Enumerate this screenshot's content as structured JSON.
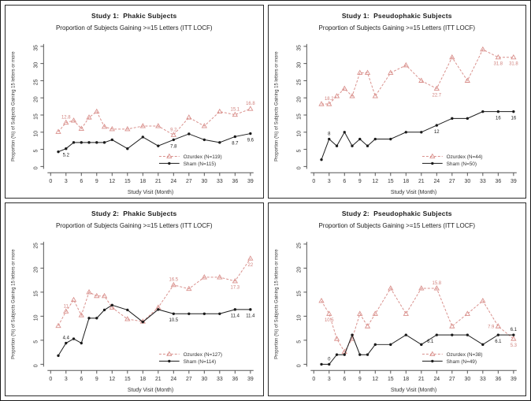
{
  "colors": {
    "ozurdex": "#d9908c",
    "ozurdex_label": "#d0807c",
    "sham": "#1a1a1a",
    "axis": "#555555",
    "tick_text": "#333333",
    "label_text": "#333333"
  },
  "chart_data": [
    {
      "type": "line",
      "title": "Study 1:  Phakic Subjects",
      "subtitle": "Proportion of Subjects Gaining >=15 Letters (ITT LOCF)",
      "xlabel": "Study Visit (Month)",
      "ylabel": "Proportion (%) of Subjects Gaining 15 letters or more",
      "xticks": [
        0,
        3,
        6,
        9,
        12,
        15,
        18,
        21,
        24,
        27,
        30,
        33,
        36,
        39
      ],
      "yticks": [
        0,
        5,
        10,
        15,
        20,
        25,
        30,
        35
      ],
      "ylim": [
        0,
        35
      ],
      "x": [
        1.5,
        3,
        4.5,
        6,
        7.5,
        9,
        10.5,
        12,
        15,
        18,
        21,
        24,
        27,
        30,
        33,
        36,
        39
      ],
      "legend_position": "bottom-right",
      "grid": false,
      "series": [
        {
          "name": "Ozurdex (N=119)",
          "color_key": "ozurdex",
          "marker": "open-triangle",
          "line_style": "dashed",
          "values": [
            10.1,
            12.8,
            13.4,
            11.0,
            14.3,
            16.0,
            11.6,
            10.9,
            10.9,
            11.8,
            11.8,
            9.2,
            14.3,
            11.8,
            16.0,
            15.1,
            16.8
          ],
          "point_labels": [
            {
              "month": 3,
              "text": "12.8",
              "pos": "above"
            },
            {
              "month": 24,
              "text": "9.2",
              "pos": "above"
            },
            {
              "month": 36,
              "text": "15.1",
              "pos": "above"
            },
            {
              "month": 39,
              "text": "16.8",
              "pos": "above"
            }
          ]
        },
        {
          "name": "Sham (N=115)",
          "color_key": "sham",
          "marker": "filled-dot",
          "line_style": "solid",
          "values": [
            4.3,
            5.2,
            7.0,
            7.0,
            7.0,
            7.0,
            7.0,
            7.8,
            5.2,
            8.6,
            6.0,
            7.8,
            9.5,
            7.8,
            7.0,
            8.7,
            9.6
          ],
          "point_labels": [
            {
              "month": 3,
              "text": "5.2",
              "pos": "below"
            },
            {
              "month": 24,
              "text": "7.8",
              "pos": "below"
            },
            {
              "month": 36,
              "text": "8.7",
              "pos": "below"
            },
            {
              "month": 39,
              "text": "9.6",
              "pos": "below"
            }
          ]
        }
      ]
    },
    {
      "type": "line",
      "title": "Study 1:  Pseudophakic Subjects",
      "subtitle": "Proportion of Subjects Gaining >=15 Letters (ITT LOCF)",
      "xlabel": "Study Visit (Month)",
      "ylabel": "Proportion (%) of Subjects Gaining 15 letters or more",
      "xticks": [
        0,
        3,
        6,
        9,
        12,
        15,
        18,
        21,
        24,
        27,
        30,
        33,
        36,
        39
      ],
      "yticks": [
        0,
        5,
        10,
        15,
        20,
        25,
        30,
        35
      ],
      "ylim": [
        0,
        35
      ],
      "x": [
        1.5,
        3,
        4.5,
        6,
        7.5,
        9,
        10.5,
        12,
        15,
        18,
        21,
        24,
        27,
        30,
        33,
        36,
        39
      ],
      "legend_position": "bottom-right",
      "grid": false,
      "series": [
        {
          "name": "Ozurdex (N=44)",
          "color_key": "ozurdex",
          "marker": "open-triangle",
          "line_style": "dashed",
          "values": [
            18.2,
            18.2,
            20.5,
            22.7,
            20.5,
            27.3,
            27.3,
            20.5,
            27.3,
            29.5,
            25.0,
            22.7,
            31.8,
            25.0,
            34.1,
            31.8,
            31.8
          ],
          "point_labels": [
            {
              "month": 3,
              "text": "18.2",
              "pos": "above"
            },
            {
              "month": 24,
              "text": "22.7",
              "pos": "below"
            },
            {
              "month": 36,
              "text": "31.8",
              "pos": "below"
            },
            {
              "month": 39,
              "text": "31.8",
              "pos": "below"
            }
          ]
        },
        {
          "name": "Sham (N=50)",
          "color_key": "sham",
          "marker": "filled-dot",
          "line_style": "solid",
          "values": [
            2,
            8,
            6,
            10,
            6,
            8,
            6,
            8,
            8,
            10,
            10,
            12,
            14,
            14,
            16,
            16,
            16
          ],
          "point_labels": [
            {
              "month": 3,
              "text": "8",
              "pos": "above"
            },
            {
              "month": 24,
              "text": "12",
              "pos": "below"
            },
            {
              "month": 36,
              "text": "16",
              "pos": "below"
            },
            {
              "month": 39,
              "text": "16",
              "pos": "below"
            }
          ]
        }
      ]
    },
    {
      "type": "line",
      "title": "Study 2:  Phakic Subjects",
      "subtitle": "Proportion of Subjects Gaining >=15 Letters (ITT LOCF)",
      "xlabel": "Study Visit (Month)",
      "ylabel": "Proportion (%) of Subjects Gaining 15 letters or more",
      "xticks": [
        0,
        3,
        6,
        9,
        12,
        15,
        18,
        21,
        24,
        27,
        30,
        33,
        36,
        39
      ],
      "yticks": [
        0,
        5,
        10,
        15,
        20,
        25
      ],
      "ylim": [
        0,
        25
      ],
      "x": [
        1.5,
        3,
        4.5,
        6,
        7.5,
        9,
        10.5,
        12,
        15,
        18,
        21,
        24,
        27,
        30,
        33,
        36,
        39
      ],
      "legend_position": "bottom-right",
      "grid": false,
      "series": [
        {
          "name": "Ozurdex (N=127)",
          "color_key": "ozurdex",
          "marker": "open-triangle",
          "line_style": "dashed",
          "values": [
            8.0,
            11.0,
            13.4,
            10.2,
            15.0,
            14.2,
            14.2,
            11.8,
            9.4,
            8.9,
            11.8,
            16.5,
            15.7,
            18.1,
            18.1,
            17.3,
            22.0
          ],
          "point_labels": [
            {
              "month": 3,
              "text": "11",
              "pos": "above"
            },
            {
              "month": 24,
              "text": "16.5",
              "pos": "above"
            },
            {
              "month": 36,
              "text": "17.3",
              "pos": "below"
            },
            {
              "month": 39,
              "text": "22",
              "pos": "below"
            }
          ]
        },
        {
          "name": "Sham (N=114)",
          "color_key": "sham",
          "marker": "filled-dot",
          "line_style": "solid",
          "values": [
            1.8,
            4.4,
            5.3,
            4.4,
            9.6,
            9.6,
            11.3,
            12.3,
            11.3,
            8.8,
            11.4,
            10.5,
            10.5,
            10.5,
            10.5,
            11.4,
            11.4
          ],
          "point_labels": [
            {
              "month": 3,
              "text": "4.4",
              "pos": "above"
            },
            {
              "month": 24,
              "text": "10.5",
              "pos": "below"
            },
            {
              "month": 36,
              "text": "11.4",
              "pos": "below"
            },
            {
              "month": 39,
              "text": "11.4",
              "pos": "below"
            }
          ]
        }
      ]
    },
    {
      "type": "line",
      "title": "Study 2:  Pseudophakic Subjects",
      "subtitle": "Proportion of Subjects Gaining >=15 Letters (ITT LOCF)",
      "xlabel": "Study Visit (Month)",
      "ylabel": "Proportion (%) of Subjects Gaining 15 letters or more",
      "xticks": [
        0,
        3,
        6,
        9,
        12,
        15,
        18,
        21,
        24,
        27,
        30,
        33,
        36,
        39
      ],
      "yticks": [
        0,
        5,
        10,
        15,
        20,
        25
      ],
      "ylim": [
        0,
        25
      ],
      "x": [
        1.5,
        3,
        4.5,
        6,
        7.5,
        9,
        10.5,
        12,
        15,
        18,
        21,
        24,
        27,
        30,
        33,
        36,
        39
      ],
      "legend_position": "bottom-right",
      "grid": false,
      "series": [
        {
          "name": "Ozurdex (N=38)",
          "color_key": "ozurdex",
          "marker": "open-triangle",
          "line_style": "dashed",
          "values": [
            13.2,
            10.5,
            5.3,
            2.6,
            5.3,
            10.5,
            7.9,
            10.5,
            15.8,
            10.5,
            15.8,
            15.8,
            7.9,
            10.5,
            13.2,
            7.9,
            5.3
          ],
          "point_labels": [
            {
              "month": 3,
              "text": "10.5",
              "pos": "below"
            },
            {
              "month": 24,
              "text": "15.8",
              "pos": "above"
            },
            {
              "month": 36,
              "text": "7.9",
              "pos": "left"
            },
            {
              "month": 39,
              "text": "5.3",
              "pos": "below"
            }
          ]
        },
        {
          "name": "Sham (N=49)",
          "color_key": "sham",
          "marker": "filled-dot",
          "line_style": "solid",
          "values": [
            0,
            0,
            2,
            2,
            6.1,
            2,
            2,
            4.1,
            4.1,
            6.1,
            4.1,
            6.1,
            6.1,
            6.1,
            4.1,
            6.1,
            6.1
          ],
          "point_labels": [
            {
              "month": 3,
              "text": "0",
              "pos": "above"
            },
            {
              "month": 24,
              "text": "6.1",
              "pos": "below-left"
            },
            {
              "month": 36,
              "text": "6.1",
              "pos": "below"
            },
            {
              "month": 39,
              "text": "6.1",
              "pos": "above"
            }
          ]
        }
      ]
    }
  ]
}
